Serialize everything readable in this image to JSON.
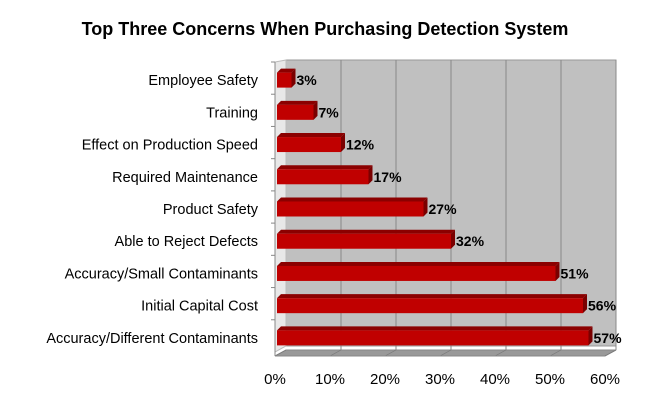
{
  "chart_data": {
    "type": "bar",
    "orientation": "horizontal",
    "title": "Top Three Concerns When Purchasing Detection System",
    "xlabel": "",
    "ylabel": "",
    "categories": [
      "Employee Safety",
      "Training",
      "Effect on Production Speed",
      "Required Maintenance",
      "Product Safety",
      "Able to Reject Defects",
      "Accuracy/Small Contaminants",
      "Initial Capital Cost",
      "Accuracy/Different Contaminants"
    ],
    "values": [
      3,
      7,
      12,
      17,
      27,
      32,
      51,
      56,
      57
    ],
    "data_labels": [
      "3%",
      "7%",
      "12%",
      "17%",
      "27%",
      "32%",
      "51%",
      "56%",
      "57%"
    ],
    "xlim": [
      0,
      60
    ],
    "xticks": [
      0,
      10,
      20,
      30,
      40,
      50,
      60
    ],
    "xtick_labels": [
      "0%",
      "10%",
      "20%",
      "30%",
      "40%",
      "50%",
      "60%"
    ],
    "grid": true,
    "legend": "none",
    "colors": {
      "bar": "#c00000",
      "bar_top": "#8b0000",
      "wall": "#c0c0c0",
      "floor": "#999999"
    }
  }
}
